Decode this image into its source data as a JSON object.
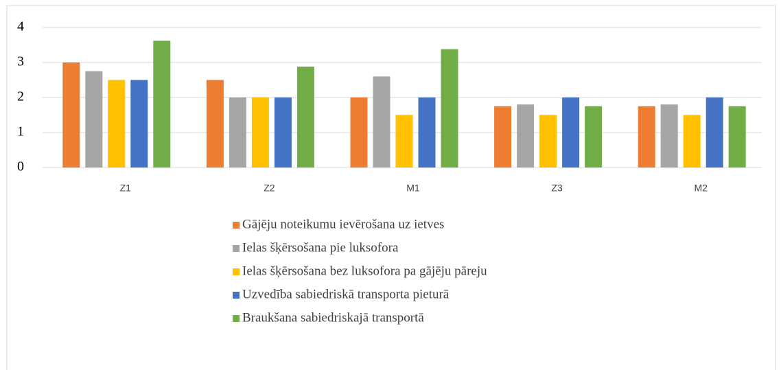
{
  "chart_data": {
    "type": "bar",
    "categories": [
      "Z1",
      "Z2",
      "M1",
      "Z3",
      "M2"
    ],
    "series": [
      {
        "name": "Gājēju noteikumu ievērošana uz ietves",
        "color": "#ED7D31",
        "values": [
          3.0,
          2.5,
          2.0,
          1.75,
          1.75
        ]
      },
      {
        "name": "Ielas šķērsošana pie luksofora",
        "color": "#A5A5A5",
        "values": [
          2.75,
          2.0,
          2.6,
          1.8,
          1.8
        ]
      },
      {
        "name": "Ielas šķērsošana bez luksofora pa gājēju pāreju",
        "color": "#FFC000",
        "values": [
          2.5,
          2.0,
          1.5,
          1.5,
          1.5
        ]
      },
      {
        "name": "Uzvedība sabiedriskā transporta pieturā",
        "color": "#4472C4",
        "values": [
          2.5,
          2.0,
          2.0,
          2.0,
          2.0
        ]
      },
      {
        "name": "Braukšana sabiedriskajā transportā",
        "color": "#70AD47",
        "values": [
          3.62,
          2.88,
          3.38,
          1.75,
          1.75
        ]
      }
    ],
    "ylim": [
      0,
      4
    ],
    "yticks": [
      0,
      1,
      2,
      3,
      4
    ],
    "grid": true,
    "legend": "bottom"
  }
}
